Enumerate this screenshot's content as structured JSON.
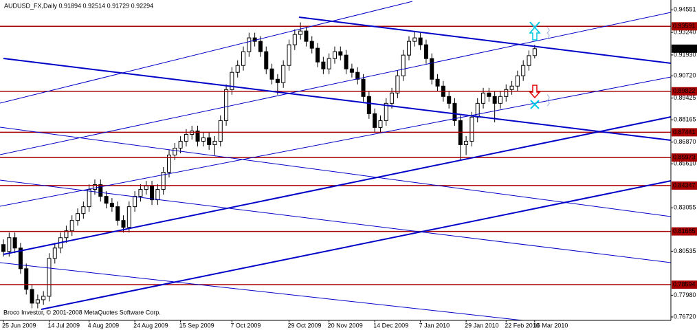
{
  "chart_data": {
    "type": "candlestick",
    "title": "AUDUSD_FX,Daily  0.91894 0.92514 0.91729 0.92294",
    "footer": "Broco Investor, © 2001-2008 MetaQuotes Software Corp.",
    "categories": [
      "25 Jun 2009",
      null,
      null,
      null,
      null,
      null,
      null,
      null,
      "14 Jul 2009",
      null,
      null,
      null,
      null,
      null,
      null,
      "4 Aug 2009",
      null,
      null,
      null,
      null,
      null,
      null,
      null,
      "24 Aug 2009",
      null,
      null,
      null,
      null,
      null,
      null,
      null,
      "15 Sep 2009",
      null,
      null,
      null,
      null,
      null,
      null,
      null,
      null,
      "7 Oct 2009",
      null,
      null,
      null,
      null,
      null,
      null,
      null,
      null,
      null,
      "29 Oct 2009",
      null,
      null,
      null,
      null,
      null,
      null,
      "20 Nov 2009",
      null,
      null,
      null,
      null,
      null,
      null,
      null,
      "14 Dec 2009",
      null,
      null,
      null,
      null,
      null,
      null,
      null,
      "7 Jan 2010",
      null,
      null,
      null,
      null,
      null,
      null,
      null,
      "29 Jan 2010",
      null,
      null,
      null,
      null,
      null,
      null,
      "22 Feb 2010",
      null,
      null,
      null,
      null,
      "16 Mar 2010"
    ],
    "open": [
      0.8092,
      0.8052,
      0.8132,
      0.8072,
      0.7952,
      0.7832,
      0.7752,
      0.7772,
      0.7792,
      0.8012,
      0.8072,
      0.8132,
      0.8172,
      0.8232,
      0.8272,
      0.8312,
      0.8412,
      0.844,
      0.8372,
      0.8332,
      0.8312,
      0.8232,
      0.8192,
      0.8312,
      0.8372,
      0.8412,
      0.8432,
      0.8352,
      0.8412,
      0.8512,
      0.8612,
      0.8652,
      0.8692,
      0.8732,
      0.8752,
      0.8692,
      0.8712,
      0.8672,
      0.8692,
      0.8812,
      0.8992,
      0.9092,
      0.9132,
      0.9212,
      0.9292,
      0.9272,
      0.9212,
      0.9112,
      0.9052,
      0.9032,
      0.9132,
      0.9252,
      0.9312,
      0.9332,
      0.9272,
      0.9232,
      0.9152,
      0.9112,
      0.9172,
      0.9212,
      0.9192,
      0.9112,
      0.9092,
      0.9052,
      0.8952,
      0.8852,
      0.8772,
      0.8812,
      0.8912,
      0.8972,
      0.9072,
      0.9192,
      0.9272,
      0.9292,
      0.9252,
      0.9172,
      0.9052,
      0.9012,
      0.8952,
      0.8912,
      0.8812,
      0.8672,
      0.8692,
      0.8832,
      0.8912,
      0.8972,
      0.8952,
      0.8912,
      0.8952,
      0.8992,
      0.9012,
      0.9072,
      0.9132,
      0.91894
    ],
    "high": [
      0.8122,
      0.8162,
      0.8162,
      0.8102,
      0.7982,
      0.7862,
      0.7802,
      0.7822,
      0.8042,
      0.8102,
      0.8162,
      0.8202,
      0.8262,
      0.8302,
      0.8342,
      0.8442,
      0.847,
      0.847,
      0.8402,
      0.8362,
      0.8342,
      0.8262,
      0.8342,
      0.8402,
      0.8442,
      0.8462,
      0.8462,
      0.8442,
      0.8542,
      0.8642,
      0.8682,
      0.8722,
      0.8762,
      0.8782,
      0.8782,
      0.8742,
      0.8742,
      0.8722,
      0.8842,
      0.9022,
      0.9122,
      0.9162,
      0.9242,
      0.9322,
      0.9322,
      0.9302,
      0.9242,
      0.9142,
      0.9082,
      0.9162,
      0.9282,
      0.9342,
      0.9382,
      0.9362,
      0.9302,
      0.9262,
      0.9182,
      0.9202,
      0.9242,
      0.9242,
      0.9222,
      0.9142,
      0.9122,
      0.9082,
      0.8982,
      0.8882,
      0.8842,
      0.8942,
      0.9002,
      0.9102,
      0.9222,
      0.9302,
      0.9332,
      0.9322,
      0.9282,
      0.9202,
      0.9082,
      0.9042,
      0.8982,
      0.8942,
      0.8842,
      0.8722,
      0.8862,
      0.8942,
      0.9002,
      0.9002,
      0.8982,
      0.8982,
      0.9022,
      0.9042,
      0.9102,
      0.9162,
      0.9219,
      0.92514
    ],
    "low": [
      0.8022,
      0.8022,
      0.8042,
      0.7922,
      0.7802,
      0.7722,
      0.7722,
      0.7742,
      0.7762,
      0.7982,
      0.8042,
      0.8102,
      0.8142,
      0.8202,
      0.8242,
      0.8282,
      0.8382,
      0.8342,
      0.8302,
      0.8282,
      0.8202,
      0.8162,
      0.8162,
      0.8282,
      0.8342,
      0.8382,
      0.8322,
      0.8322,
      0.8382,
      0.8482,
      0.8582,
      0.8622,
      0.8662,
      0.8702,
      0.8662,
      0.8662,
      0.8642,
      0.8612,
      0.8662,
      0.8782,
      0.8962,
      0.9062,
      0.9102,
      0.9182,
      0.9242,
      0.9182,
      0.9082,
      0.9022,
      0.8962,
      0.9002,
      0.9102,
      0.9222,
      0.9282,
      0.9242,
      0.9202,
      0.9122,
      0.9082,
      0.9082,
      0.9142,
      0.9162,
      0.9082,
      0.9062,
      0.9022,
      0.8922,
      0.8822,
      0.8742,
      0.8742,
      0.8782,
      0.8882,
      0.8942,
      0.9042,
      0.9162,
      0.9242,
      0.9222,
      0.9142,
      0.9022,
      0.8982,
      0.8922,
      0.8882,
      0.8782,
      0.8582,
      0.8612,
      0.8662,
      0.8802,
      0.8882,
      0.8922,
      0.8802,
      0.8882,
      0.8922,
      0.8962,
      0.8982,
      0.9042,
      0.9102,
      0.91729
    ],
    "close": [
      0.8052,
      0.8132,
      0.8072,
      0.7952,
      0.7832,
      0.7752,
      0.7772,
      0.7792,
      0.8012,
      0.8072,
      0.8132,
      0.8172,
      0.8232,
      0.8272,
      0.8312,
      0.8412,
      0.844,
      0.8372,
      0.8332,
      0.8312,
      0.8232,
      0.8192,
      0.8312,
      0.8372,
      0.8412,
      0.8432,
      0.8352,
      0.8412,
      0.8512,
      0.8612,
      0.8652,
      0.8692,
      0.8732,
      0.8752,
      0.8692,
      0.8712,
      0.8672,
      0.8692,
      0.8812,
      0.8992,
      0.9092,
      0.9132,
      0.9212,
      0.9292,
      0.9272,
      0.9212,
      0.9112,
      0.9052,
      0.9032,
      0.9132,
      0.9252,
      0.9312,
      0.9332,
      0.9272,
      0.9232,
      0.9152,
      0.9112,
      0.9172,
      0.9212,
      0.9192,
      0.9112,
      0.9092,
      0.9052,
      0.8952,
      0.8852,
      0.8772,
      0.8812,
      0.8912,
      0.8972,
      0.9072,
      0.9192,
      0.9272,
      0.9292,
      0.9252,
      0.9172,
      0.9052,
      0.9012,
      0.8952,
      0.8912,
      0.8812,
      0.8672,
      0.8692,
      0.8832,
      0.8912,
      0.8972,
      0.8952,
      0.8912,
      0.8952,
      0.8992,
      0.9012,
      0.9072,
      0.9132,
      0.9189,
      0.92294
    ],
    "up_color": "#ffffff",
    "down_color": "#000000",
    "ylim": [
      0.7652,
      0.9512
    ],
    "yticks": [
      0.94551,
      {
        "value": 0.9324,
        "label": "0.93240"
      },
      {
        "value": 0.9193,
        "label": "0.91930"
      },
      {
        "value": 0.9072,
        "label": "0.90720"
      },
      0.89425,
      0.88165,
      {
        "value": 0.8687,
        "label": "0.86870"
      },
      {
        "value": 0.8561,
        "label": "0.85610"
      },
      0.83055,
      0.80535,
      {
        "value": 0.7798,
        "label": "0.77980"
      },
      {
        "value": 0.7672,
        "label": "0.76720"
      }
    ],
    "levels": [
      0.93591,
      0.89822,
      0.87441,
      0.85973,
      0.84347,
      0.81685,
      0.78594
    ],
    "level_color": "#a80000",
    "last_price": 0.92294
  }
}
